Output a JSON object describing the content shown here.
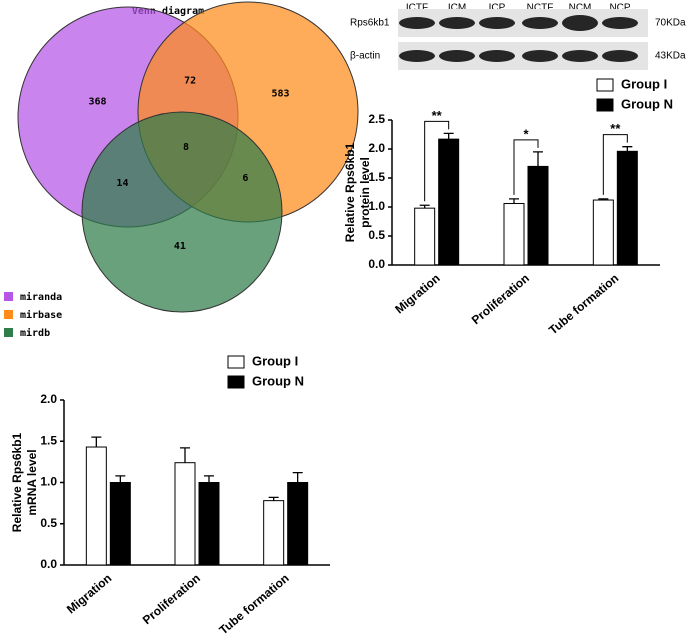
{
  "chart_data": [
    {
      "type": "venn",
      "title": "Venn diagram",
      "sets": [
        {
          "name": "miranda",
          "color": "#b655e6"
        },
        {
          "name": "mirbase",
          "color": "#ff8c1a"
        },
        {
          "name": "mirdb",
          "color": "#2e7d4a"
        }
      ],
      "regions": [
        {
          "sets": [
            0
          ],
          "value": 368
        },
        {
          "sets": [
            0,
            1
          ],
          "value": 72
        },
        {
          "sets": [
            1
          ],
          "value": 583
        },
        {
          "sets": [
            0,
            2
          ],
          "value": 14
        },
        {
          "sets": [
            0,
            1,
            2
          ],
          "value": 8
        },
        {
          "sets": [
            1,
            2
          ],
          "value": 6
        },
        {
          "sets": [
            2
          ],
          "value": 41
        }
      ]
    },
    {
      "type": "bar",
      "y_label": [
        "Relative Rps6kb1",
        "protein level"
      ],
      "categories": [
        "Migration",
        "Proliferation",
        "Tube formation"
      ],
      "series": [
        {
          "name": "Group I",
          "color": "#ffffff",
          "values": [
            0.98,
            1.06,
            1.12
          ],
          "errors": [
            0.05,
            0.08,
            0.02
          ]
        },
        {
          "name": "Group N",
          "color": "#000000",
          "values": [
            2.17,
            1.7,
            1.96
          ],
          "errors": [
            0.1,
            0.25,
            0.08
          ]
        }
      ],
      "annotations": [
        "**",
        "*",
        "**"
      ],
      "ylim": [
        0,
        2.5
      ],
      "yticks": [
        {
          "value": 0,
          "label": "0.0"
        },
        {
          "value": 0.5,
          "label": "0.5"
        },
        {
          "value": 1,
          "label": "1.0"
        },
        {
          "value": 1.5,
          "label": "1.5"
        },
        {
          "value": 2,
          "label": "2.0"
        },
        {
          "value": 2.5,
          "label": "2.5"
        }
      ]
    },
    {
      "type": "bar",
      "y_label": [
        "Relative Rps6kb1",
        "mRNA level"
      ],
      "categories": [
        "Migration",
        "Proliferation",
        "Tube formation"
      ],
      "series": [
        {
          "name": "Group I",
          "color": "#ffffff",
          "values": [
            1.43,
            1.24,
            0.78
          ],
          "errors": [
            0.12,
            0.18,
            0.04
          ]
        },
        {
          "name": "Group N",
          "color": "#000000",
          "values": [
            1.0,
            1.0,
            1.0
          ],
          "errors": [
            0.08,
            0.08,
            0.12
          ]
        }
      ],
      "ylim": [
        0,
        2.0
      ],
      "yticks": [
        {
          "value": 0,
          "label": "0.0"
        },
        {
          "value": 0.5,
          "label": "0.5"
        },
        {
          "value": 1,
          "label": "1.0"
        },
        {
          "value": 1.5,
          "label": "1.5"
        },
        {
          "value": 2,
          "label": "2.0"
        }
      ]
    }
  ],
  "blot": {
    "lanes": [
      "ICTF",
      "ICM",
      "ICP",
      "NCTF",
      "NCM",
      "NCP"
    ],
    "rows": [
      {
        "label": "Rps6kb1",
        "size": "70KDa"
      },
      {
        "label": "β-actin",
        "size": "43KDa"
      }
    ]
  }
}
